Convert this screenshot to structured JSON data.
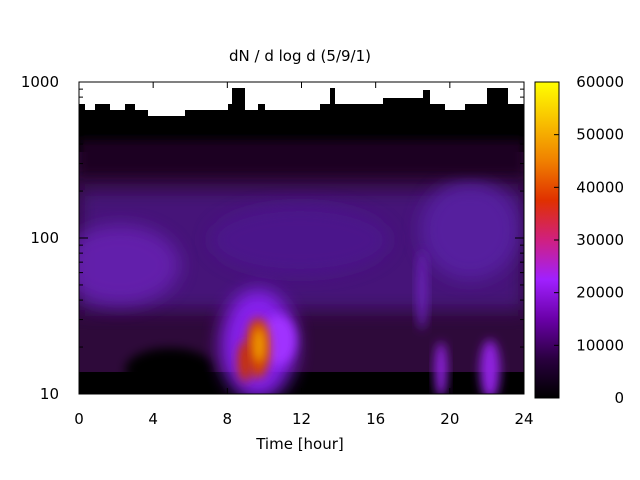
{
  "chart_data": {
    "type": "heatmap",
    "title": "dN / d log d (5/9/1)",
    "xlabel": "Time [hour]",
    "ylabel": "",
    "x_ticks": [
      "0",
      "4",
      "8",
      "12",
      "16",
      "20",
      "24"
    ],
    "x_tick_values": [
      0,
      4,
      8,
      12,
      16,
      20,
      24
    ],
    "xlim": [
      0,
      24
    ],
    "y_ticks": [
      "10",
      "100",
      "1000"
    ],
    "y_tick_values": [
      10,
      100,
      1000
    ],
    "ylim": [
      10,
      1000
    ],
    "y_scale": "log",
    "colorbar": {
      "ticks": [
        "0",
        "10000",
        "20000",
        "30000",
        "40000",
        "50000",
        "60000"
      ],
      "tick_values": [
        0,
        10000,
        20000,
        30000,
        40000,
        50000,
        60000
      ],
      "range": [
        0,
        60000
      ],
      "palette": [
        "#000000",
        "#2a0040",
        "#6a00a8",
        "#a020ff",
        "#d02080",
        "#e03000",
        "#f08000",
        "#f8c000",
        "#ffff00"
      ]
    },
    "features": [
      {
        "t": 9.6,
        "d": 16,
        "value": 48000
      },
      {
        "t": 9.0,
        "d": 13,
        "value": 38000
      },
      {
        "t": 10.5,
        "d": 18,
        "value": 20000
      },
      {
        "t": 19.5,
        "d": 13,
        "value": 14000
      },
      {
        "t": 22.0,
        "d": 13,
        "value": 15000
      },
      {
        "t": 1.0,
        "d": 60,
        "value": 10000
      },
      {
        "t": 17.0,
        "d": 100,
        "value": 8000
      }
    ]
  }
}
